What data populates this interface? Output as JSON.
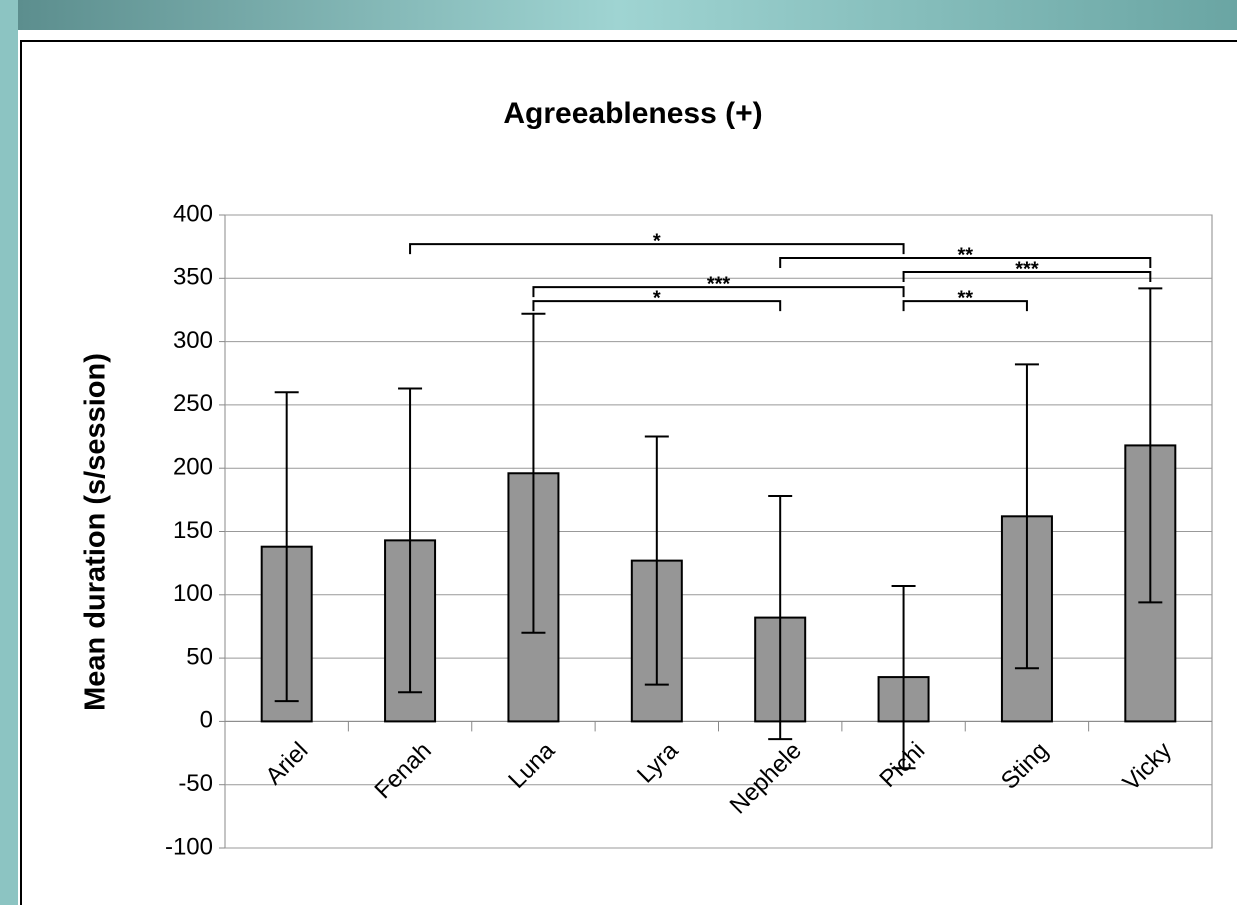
{
  "chart_data": {
    "type": "bar",
    "title": "Agreeableness (+)",
    "y_label": "Mean duration (s/session)",
    "categories": [
      "Ariel",
      "Fenah",
      "Luna",
      "Lyra",
      "Nephele",
      "Pichi",
      "Sting",
      "Vicky"
    ],
    "values": [
      138,
      143,
      196,
      127,
      82,
      35,
      162,
      218
    ],
    "errors": [
      122,
      120,
      126,
      98,
      96,
      72,
      120,
      124
    ],
    "color": "#969696",
    "ylim": [
      -100,
      400
    ],
    "yticks": [
      -100,
      -50,
      0,
      50,
      100,
      150,
      200,
      250,
      300,
      350,
      400
    ],
    "grid": true,
    "significance": [
      {
        "from": "Fenah",
        "to": "Pichi",
        "y": 377,
        "label": "*"
      },
      {
        "from": "Nephele",
        "to": "Vicky",
        "y": 366,
        "label": "**"
      },
      {
        "from": "Pichi",
        "to": "Vicky",
        "y": 355,
        "label": "***"
      },
      {
        "from": "Luna",
        "to": "Pichi",
        "y": 343,
        "label": "***"
      },
      {
        "from": "Luna",
        "to": "Nephele",
        "y": 332,
        "label": "*"
      },
      {
        "from": "Pichi",
        "to": "Sting",
        "y": 332,
        "label": "**"
      }
    ]
  }
}
